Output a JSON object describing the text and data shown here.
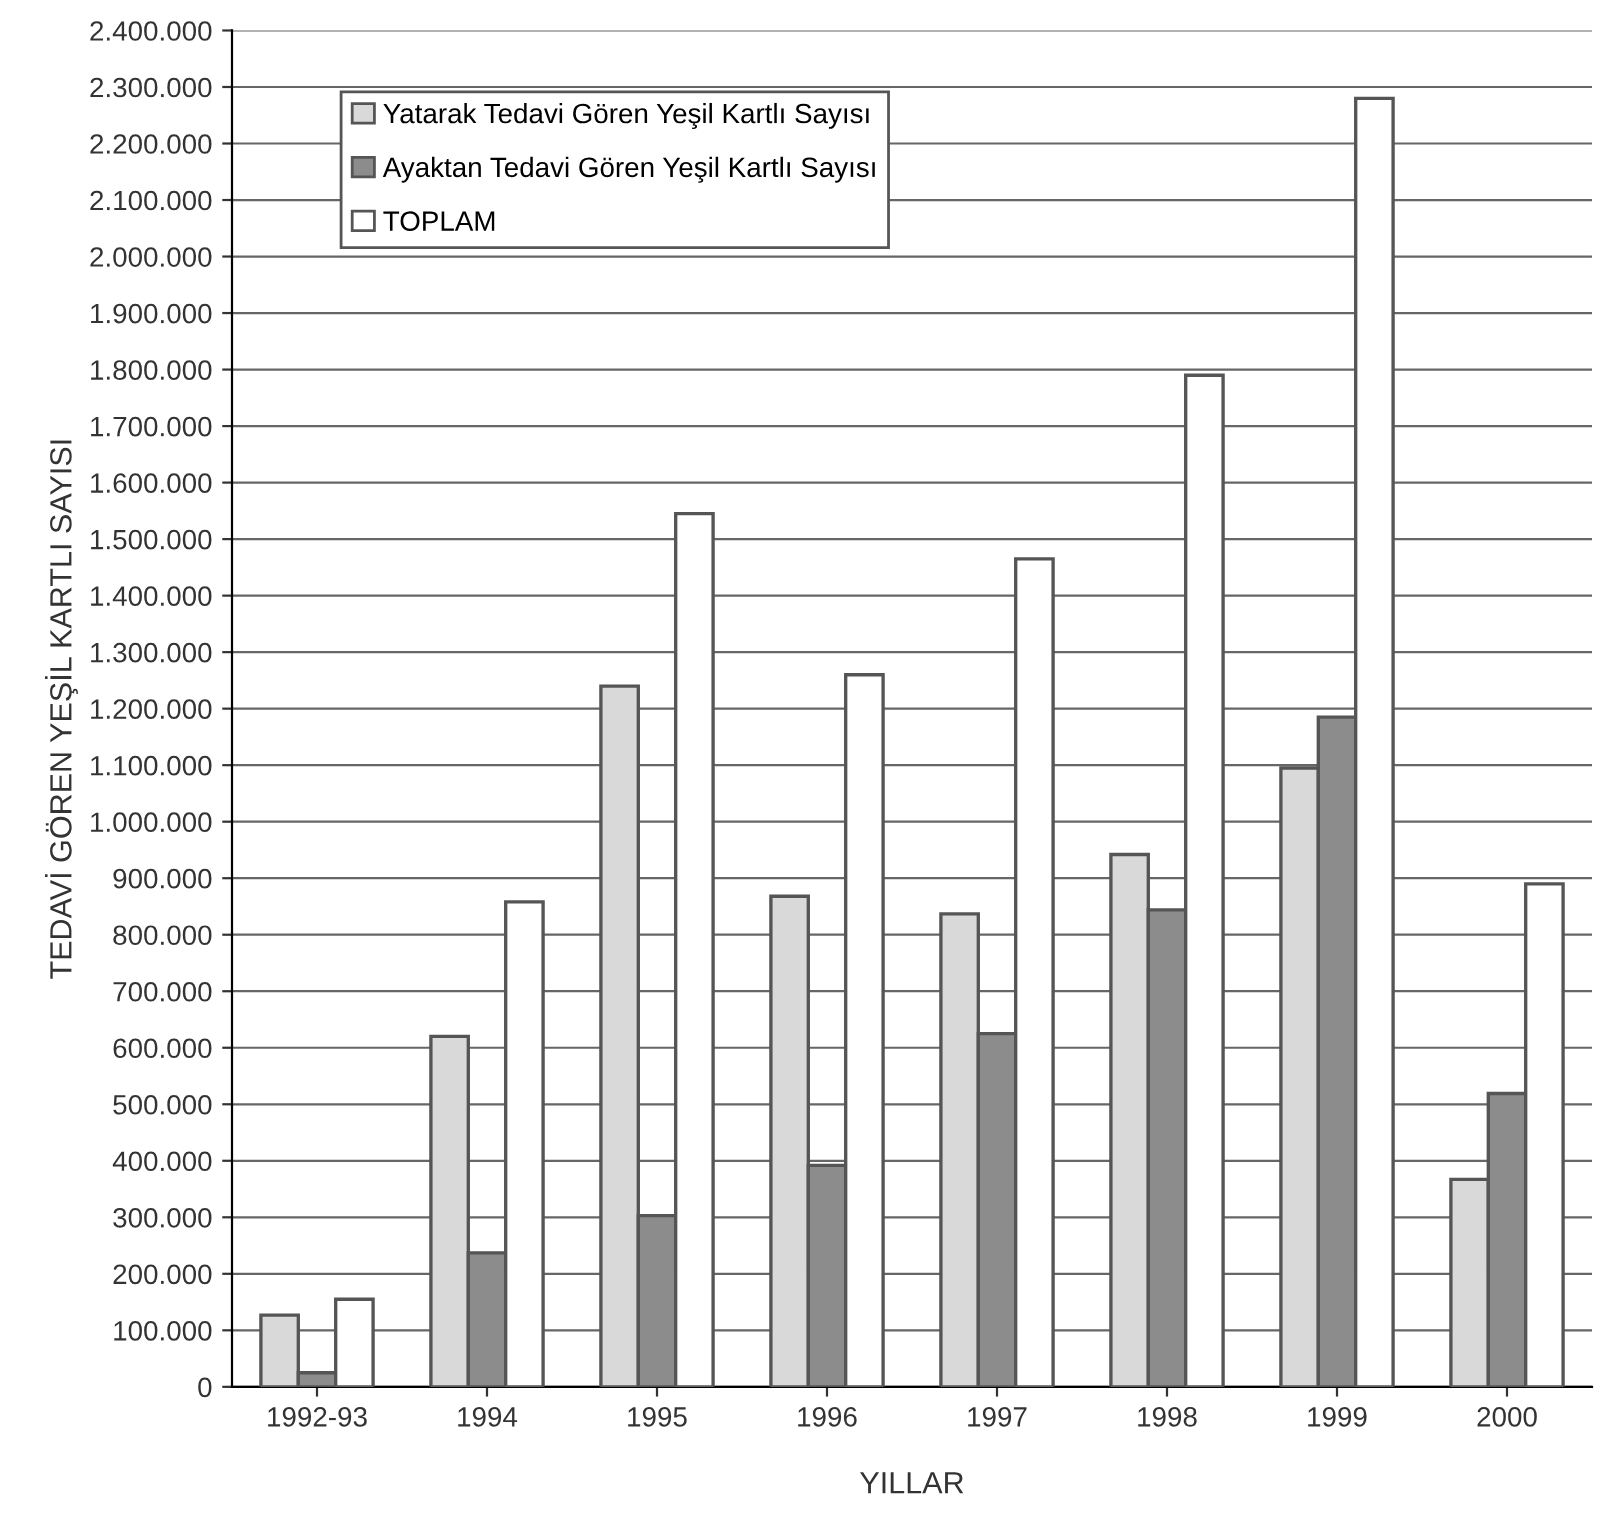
{
  "chart_data": {
    "type": "bar",
    "xlabel": "YILLAR",
    "ylabel": "TEDAVİ GÖREN YEŞİL KARTLI SAYISI",
    "categories": [
      "1992-93",
      "1994",
      "1995",
      "1996",
      "1997",
      "1998",
      "1999",
      "2000"
    ],
    "series": [
      {
        "name": "Yatarak Tedavi Gören Yeşil Kartlı Sayısı",
        "color": "#d9d9d9",
        "values": [
          127000,
          620000,
          1240000,
          868000,
          837000,
          942000,
          1095000,
          367000
        ]
      },
      {
        "name": "Ayaktan Tedavi Gören Yeşil Kartlı Sayısı",
        "color": "#8c8c8c",
        "values": [
          25000,
          237000,
          303000,
          392000,
          625000,
          844000,
          1185000,
          519000
        ]
      },
      {
        "name": "TOPLAM",
        "color": "#ffffff",
        "values": [
          155000,
          858000,
          1545000,
          1260000,
          1465000,
          1790000,
          2280000,
          890000
        ]
      }
    ],
    "ylim": [
      0,
      2400000
    ],
    "yticks": [
      {
        "value": 0,
        "label": "0"
      },
      {
        "value": 100000,
        "label": "100.000"
      },
      {
        "value": 200000,
        "label": "200.000"
      },
      {
        "value": 300000,
        "label": "300.000"
      },
      {
        "value": 400000,
        "label": "400.000"
      },
      {
        "value": 500000,
        "label": "500.000"
      },
      {
        "value": 600000,
        "label": "600.000"
      },
      {
        "value": 700000,
        "label": "700.000"
      },
      {
        "value": 800000,
        "label": "800.000"
      },
      {
        "value": 900000,
        "label": "900.000"
      },
      {
        "value": 1000000,
        "label": "1.000.000"
      },
      {
        "value": 1100000,
        "label": "1.100.000"
      },
      {
        "value": 1200000,
        "label": "1.200.000"
      },
      {
        "value": 1300000,
        "label": "1.300.000"
      },
      {
        "value": 1400000,
        "label": "1.400.000"
      },
      {
        "value": 1500000,
        "label": "1.500.000"
      },
      {
        "value": 1600000,
        "label": "1.600.000"
      },
      {
        "value": 1700000,
        "label": "1.700.000"
      },
      {
        "value": 1800000,
        "label": "1.800.000"
      },
      {
        "value": 1900000,
        "label": "1.900.000"
      },
      {
        "value": 2000000,
        "label": "2.000.000"
      },
      {
        "value": 2100000,
        "label": "2.100.000"
      },
      {
        "value": 2200000,
        "label": "2.200.000"
      },
      {
        "value": 2300000,
        "label": "2.300.000"
      },
      {
        "value": 2400000,
        "label": "2.400.000"
      }
    ],
    "grid": "y",
    "legend": "top left"
  }
}
